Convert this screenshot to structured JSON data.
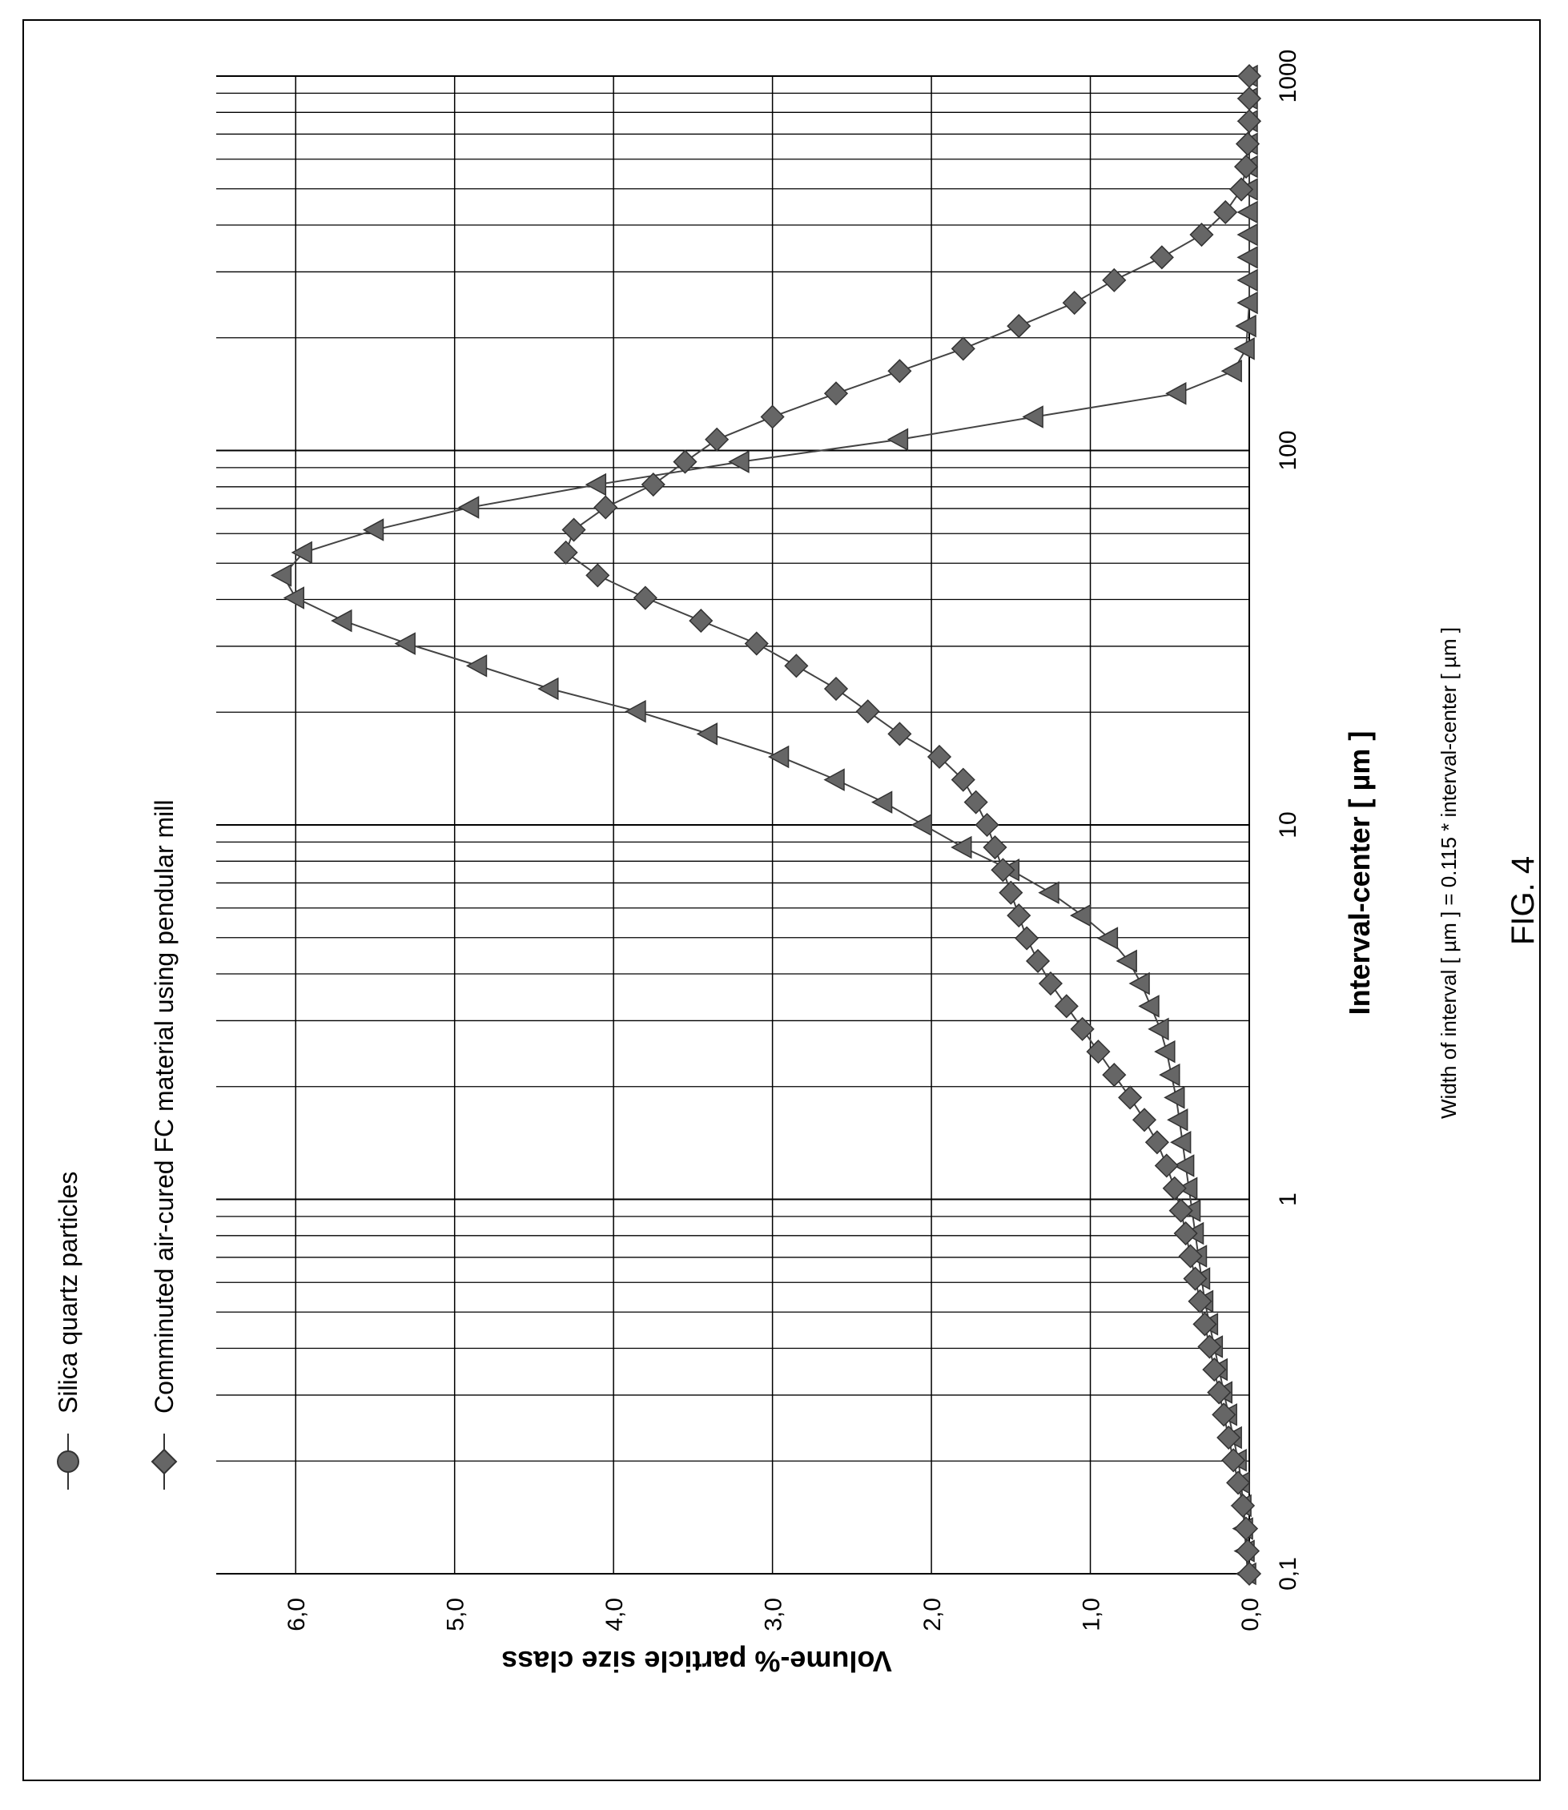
{
  "figure": {
    "label": "FIG. 4"
  },
  "chart_data": {
    "type": "line",
    "orientation": "rotated-90-ccw",
    "xscale": "log",
    "xlim": [
      0.1,
      1000
    ],
    "ylim": [
      0,
      6.5
    ],
    "xlabel": "Interval-center  [ µm ]",
    "ylabel": "Volume-% particle size class",
    "note": "Width of interval [ µm ] = 0.115 * interval-center [ µm ]",
    "x_ticks": [
      {
        "v": 0.1,
        "label": "0,1"
      },
      {
        "v": 1,
        "label": "1"
      },
      {
        "v": 10,
        "label": "10"
      },
      {
        "v": 100,
        "label": "100"
      },
      {
        "v": 1000,
        "label": "1000"
      }
    ],
    "y_ticks": [
      {
        "v": 0,
        "label": "0,0"
      },
      {
        "v": 1,
        "label": "1,0"
      },
      {
        "v": 2,
        "label": "2,0"
      },
      {
        "v": 3,
        "label": "3,0"
      },
      {
        "v": 4,
        "label": "4,0"
      },
      {
        "v": 5,
        "label": "5,0"
      },
      {
        "v": 6,
        "label": "6,0"
      }
    ],
    "grid": true,
    "legend_position": "top-left",
    "series": [
      {
        "name": "Silica quartz particles",
        "marker": "circle",
        "color": "#666666",
        "x": [
          0.1,
          0.115,
          0.132,
          0.152,
          0.175,
          0.201,
          0.231,
          0.266,
          0.305,
          0.351,
          0.404,
          0.464,
          0.534,
          0.614,
          0.705,
          0.811,
          0.933,
          1.07,
          1.23,
          1.42,
          1.63,
          1.87,
          2.15,
          2.48,
          2.85,
          3.28,
          3.77,
          4.33,
          4.98,
          5.73,
          6.59,
          7.58,
          8.71,
          10.0,
          11.5,
          13.2,
          15.2,
          17.5,
          20.1,
          23.1,
          26.6,
          30.5,
          35.1,
          40.4,
          46.4,
          53.4,
          61.4,
          70.5,
          81.1,
          93.3,
          107,
          123,
          142,
          163,
          187,
          215,
          248,
          285,
          328,
          377,
          433,
          498,
          573,
          659,
          758,
          871,
          1000
        ],
        "y": [
          0.01,
          0.02,
          0.03,
          0.04,
          0.05,
          0.07,
          0.1,
          0.13,
          0.16,
          0.19,
          0.22,
          0.25,
          0.28,
          0.3,
          0.32,
          0.34,
          0.36,
          0.38,
          0.4,
          0.42,
          0.44,
          0.46,
          0.49,
          0.52,
          0.56,
          0.62,
          0.68,
          0.76,
          0.88,
          1.05,
          1.25,
          1.5,
          1.8,
          2.05,
          2.3,
          2.6,
          2.95,
          3.4,
          3.85,
          4.4,
          4.85,
          5.3,
          5.7,
          6.0,
          6.08,
          5.95,
          5.5,
          4.9,
          4.1,
          3.2,
          2.2,
          1.35,
          0.45,
          0.1,
          0.02,
          0.01,
          0.0,
          0.0,
          0.0,
          0.0,
          0.0,
          0.0,
          0.0,
          0.0,
          0.0,
          0.0,
          0.0
        ]
      },
      {
        "name": "Comminuted air-cured FC material using pendular mill",
        "marker": "diamond",
        "color": "#666666",
        "x": [
          0.1,
          0.115,
          0.132,
          0.152,
          0.175,
          0.201,
          0.231,
          0.266,
          0.305,
          0.351,
          0.404,
          0.464,
          0.534,
          0.614,
          0.705,
          0.811,
          0.933,
          1.07,
          1.23,
          1.42,
          1.63,
          1.87,
          2.15,
          2.48,
          2.85,
          3.28,
          3.77,
          4.33,
          4.98,
          5.73,
          6.59,
          7.58,
          8.71,
          10.0,
          11.5,
          13.2,
          15.2,
          17.5,
          20.1,
          23.1,
          26.6,
          30.5,
          35.1,
          40.4,
          46.4,
          53.4,
          61.4,
          70.5,
          81.1,
          93.3,
          107,
          123,
          142,
          163,
          187,
          215,
          248,
          285,
          328,
          377,
          433,
          498,
          573,
          659,
          758,
          871,
          1000
        ],
        "y": [
          0.0,
          0.01,
          0.02,
          0.04,
          0.07,
          0.1,
          0.13,
          0.16,
          0.19,
          0.22,
          0.25,
          0.28,
          0.31,
          0.34,
          0.37,
          0.4,
          0.43,
          0.47,
          0.52,
          0.58,
          0.66,
          0.75,
          0.85,
          0.95,
          1.05,
          1.15,
          1.25,
          1.33,
          1.4,
          1.45,
          1.5,
          1.55,
          1.6,
          1.65,
          1.72,
          1.8,
          1.95,
          2.2,
          2.4,
          2.6,
          2.85,
          3.1,
          3.45,
          3.8,
          4.1,
          4.3,
          4.25,
          4.05,
          3.75,
          3.55,
          3.35,
          3.0,
          2.6,
          2.2,
          1.8,
          1.45,
          1.1,
          0.85,
          0.55,
          0.3,
          0.15,
          0.05,
          0.02,
          0.01,
          0.0,
          0.0,
          0.0
        ]
      }
    ]
  }
}
